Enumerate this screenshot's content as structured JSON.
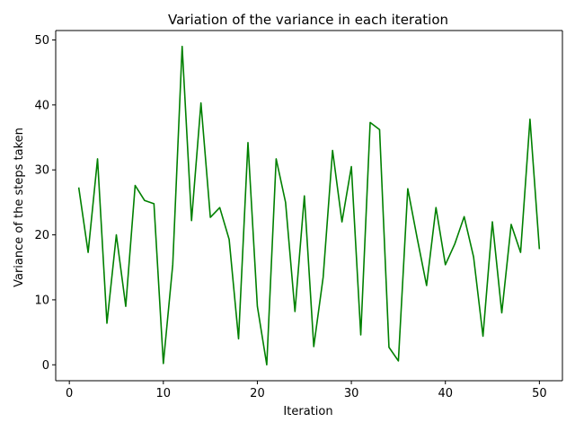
{
  "chart_data": {
    "type": "line",
    "title": "Variation of the variance in each iteration",
    "xlabel": "Iteration",
    "ylabel": "Variance of the steps taken",
    "xlim": [
      -1.45,
      52.45
    ],
    "ylim": [
      -2.45,
      51.45
    ],
    "xticks": [
      0,
      10,
      20,
      30,
      40,
      50
    ],
    "yticks": [
      0,
      10,
      20,
      30,
      40,
      50
    ],
    "grid": false,
    "legend": "none",
    "series": [
      {
        "color": "#008000",
        "x": [
          1,
          2,
          3,
          4,
          5,
          6,
          7,
          8,
          9,
          10,
          11,
          12,
          13,
          14,
          15,
          16,
          17,
          18,
          19,
          20,
          21,
          22,
          23,
          24,
          25,
          26,
          27,
          28,
          29,
          30,
          31,
          32,
          33,
          34,
          35,
          36,
          37,
          38,
          39,
          40,
          41,
          42,
          43,
          44,
          45,
          46,
          47,
          48,
          49,
          50
        ],
        "y": [
          27.3,
          17.3,
          31.7,
          6.4,
          20.0,
          9.0,
          27.6,
          25.3,
          24.8,
          0.2,
          15.4,
          49.0,
          22.2,
          40.3,
          22.7,
          24.2,
          19.3,
          4.0,
          34.2,
          9.0,
          0.0,
          31.7,
          25.0,
          8.2,
          26.0,
          2.8,
          13.5,
          33.0,
          22.0,
          30.5,
          4.6,
          37.3,
          36.2,
          2.7,
          0.6,
          27.1,
          19.5,
          12.2,
          24.2,
          15.4,
          18.6,
          22.8,
          16.6,
          4.4,
          22.0,
          8.0,
          21.6,
          17.3,
          37.8,
          17.8
        ]
      }
    ]
  }
}
